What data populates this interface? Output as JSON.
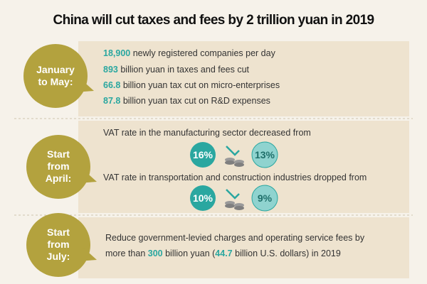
{
  "title": "China will cut taxes and fees by 2 trillion yuan in 2019",
  "sections": [
    {
      "label": [
        "January",
        "to May:"
      ],
      "items": [
        {
          "number": "18,900",
          "text": "newly registered companies per day"
        },
        {
          "number": "893",
          "text": "billion yuan in taxes and fees cut"
        },
        {
          "number": "66.8",
          "text": "billion yuan tax cut on micro-enterprises"
        },
        {
          "number": "87.8",
          "text": "billion yuan tax cut on R&D expenses"
        }
      ]
    },
    {
      "label": [
        "Start",
        "from",
        "April:"
      ],
      "items": [
        {
          "text": "VAT rate in the manufacturing sector decreased from",
          "from": "16%",
          "to": "13%"
        },
        {
          "text": "VAT rate in transportation and construction industries dropped from",
          "from": "10%",
          "to": "9%"
        }
      ]
    },
    {
      "label": [
        "Start",
        "from",
        "July:"
      ],
      "line1": "Reduce government-levied charges and operating service fees by",
      "line2": [
        "more than",
        "300",
        "billion yuan (",
        "44.7",
        "billion U.S. dollars) in 2019"
      ]
    }
  ]
}
